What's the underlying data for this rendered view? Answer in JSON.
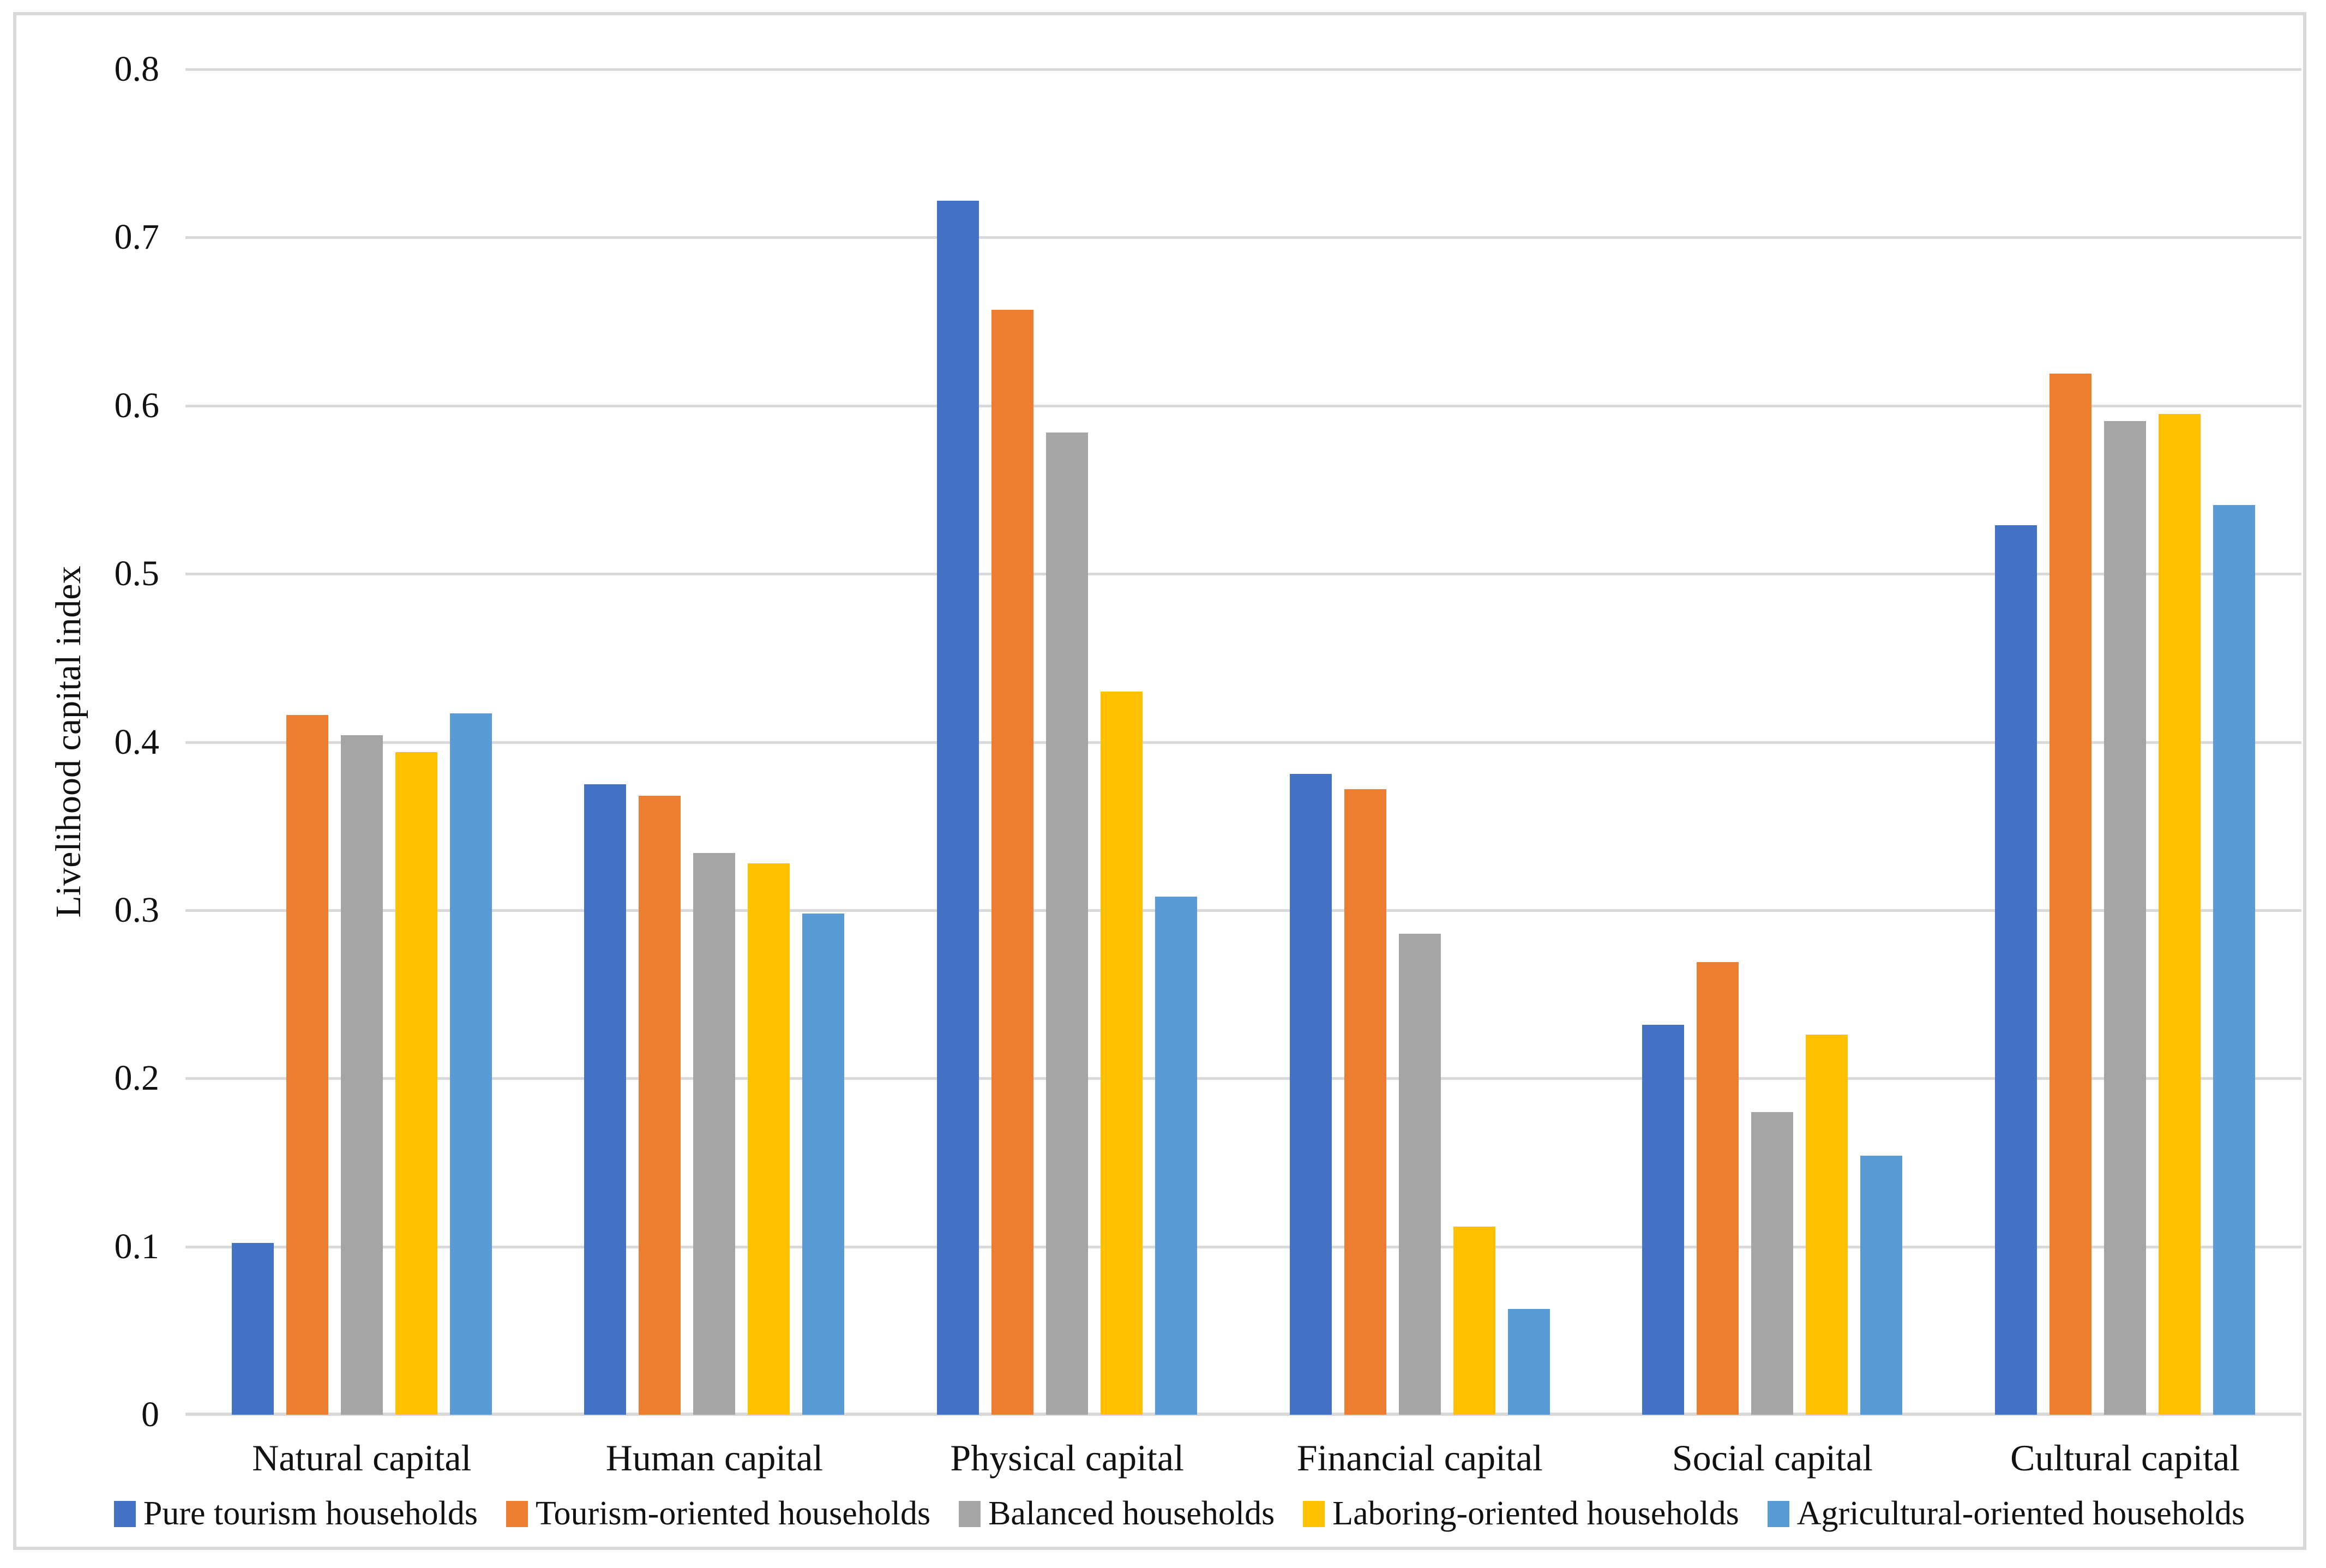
{
  "figure": {
    "background_color": "#FFFFFF",
    "frame_border_color": "#D9D9D9",
    "gridline_color": "#D9D9D9"
  },
  "chart_data": {
    "type": "bar",
    "title": "",
    "xlabel": "",
    "ylabel": "Livelihood capital index",
    "ylim": [
      0,
      0.8
    ],
    "ytick_step": 0.1,
    "yticks": [
      "0.8",
      "0.7",
      "0.6",
      "0.5",
      "0.4",
      "0.3",
      "0.2",
      "0.1",
      "0"
    ],
    "grid": "horizontal",
    "legend_position": "bottom",
    "categories": [
      "Natural capital",
      "Human capital",
      "Physical capital",
      "Financial capital",
      "Social capital",
      "Cultural capital"
    ],
    "series": [
      {
        "name": "Pure tourism households",
        "color": "#4472C4",
        "values": [
          0.102,
          0.375,
          0.722,
          0.381,
          0.232,
          0.529
        ]
      },
      {
        "name": "Tourism-oriented households",
        "color": "#ED7D31",
        "values": [
          0.416,
          0.368,
          0.657,
          0.372,
          0.269,
          0.619
        ]
      },
      {
        "name": "Balanced households",
        "color": "#A5A5A5",
        "values": [
          0.404,
          0.334,
          0.584,
          0.286,
          0.18,
          0.591
        ]
      },
      {
        "name": "Laboring-oriented households",
        "color": "#FFC000",
        "values": [
          0.394,
          0.328,
          0.43,
          0.112,
          0.226,
          0.595
        ]
      },
      {
        "name": "Agricultural-oriented households",
        "color": "#5B9BD5",
        "values": [
          0.417,
          0.298,
          0.308,
          0.063,
          0.154,
          0.541
        ]
      }
    ]
  }
}
